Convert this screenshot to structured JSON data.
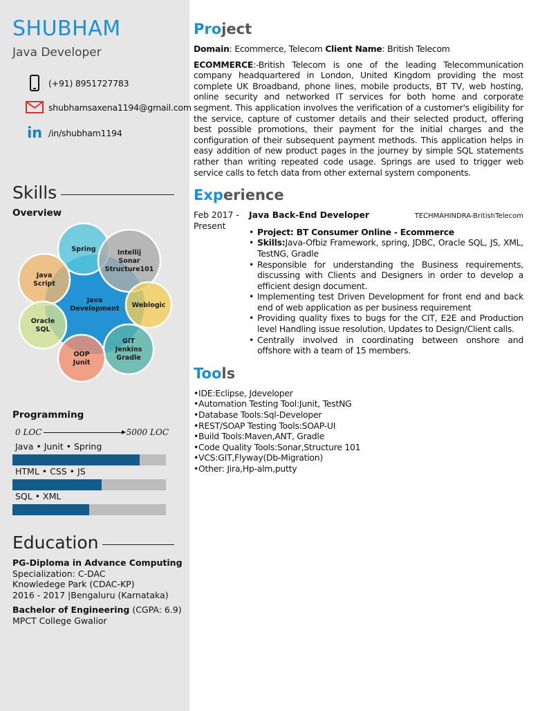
{
  "sidebar": {
    "name": "SHUBHAM",
    "role": "Java Developer",
    "contacts": [
      {
        "icon": "phone-icon",
        "text": "(+91) 8951727783"
      },
      {
        "icon": "mail-icon",
        "text": "shubhamsaxena1194@gmail.com"
      },
      {
        "icon": "linkedin-icon",
        "text": "/in/shubham1194"
      }
    ],
    "skills_title": "Skills",
    "overview_title": "Overview",
    "overview_diagram": {
      "center": "Java Development",
      "nodes": [
        {
          "label": "Spring",
          "color": "#4fc6dc"
        },
        {
          "label": "Intellij Sonar Structure101",
          "color": "#a9a9a9"
        },
        {
          "label": "Java Script",
          "color": "#f1b56b"
        },
        {
          "label": "Weblogic",
          "color": "#f4cd52"
        },
        {
          "label": "Oracle SQL",
          "color": "#cfe18f"
        },
        {
          "label": "GIT Jenkins Gradle",
          "color": "#4fb0a6"
        },
        {
          "label": "OOP Junit",
          "color": "#f58a6a"
        }
      ]
    },
    "programming_title": "Programming",
    "scale_start": "0 LOC",
    "scale_end": "5000 LOC",
    "programming": [
      {
        "label": "Java • Junit • Spring",
        "percent": 83
      },
      {
        "label": "HTML • CSS • JS",
        "percent": 58
      },
      {
        "label": "SQL • XML",
        "percent": 50
      }
    ],
    "education_title": "Education",
    "education": [
      {
        "title": "PG-Diploma in Advance Computing",
        "lines": [
          "Specialization: C-DAC",
          "Knowledege Park (CDAC-KP)",
          "2016 - 2017 |Bengaluru (Karnataka)"
        ]
      },
      {
        "title": "Bachelor of Engineering",
        "extra": "(CGPA: 6.9)",
        "lines": [
          "MPCT College Gwalior"
        ]
      }
    ]
  },
  "project": {
    "title_a": "Pro",
    "title_b": "ject",
    "domain_label": "Domain",
    "domain": ": Ecommerce, Telecom ",
    "client_label": "Client Name",
    ": British Telecom": "",
    "client": ": British Telecom",
    "desc_label": "ECOMMERCE",
    "desc": ":-British Telecom is one of the leading Telecommunication company headquartered in London, United Kingdom providing the most complete UK Broadband, phone lines, mobile products, BT TV, web hosting, online security and networked IT services for both home and corporate segment. This application involves the verification of a customer's eligibility for the service, capture of customer details and their selected product, offering best possible promotions, their payment for the initial charges and the configuration of their subsequent payment methods. This application helps in easy addition of new product pages in the journey by simple SQL statements rather than writing repeated code usage. Springs are used to trigger web service calls to fetch data from other external system components."
  },
  "experience": {
    "title_a": "Exp",
    "title_b": "erience",
    "date1": "Feb 2017 -",
    "date2": "Present",
    "position": "Java Back-End Developer",
    "company": "TECHMAHINDRA-BritishTelecom",
    "project_line": "Project: BT Consumer Online - Ecommerce",
    "skills_label": "Skills:",
    "skills": "Java-Ofbiz Framework, spring, JDBC, Oracle SQL, JS, XML, TestNG, Gradle",
    "bullets": [
      "Responsible for understanding the Business requirements, discussing with Clients and Designers in order to develop a efficient design document.",
      "Implementing test Driven Development for front end and back end of web application as per business requirement",
      "Providing quality fixes to bugs for the CIT, E2E and Production level Handling issue resolution, Updates to Design/Client calls.",
      "Centrally involved in coordinating between onshore and offshore with a team of 15 members."
    ]
  },
  "tools": {
    "title_a": "Too",
    "title_b": "ls",
    "items": [
      "•IDE:Eclipse, Jdeveloper",
      "•Automation Testing Tool:Junit, TestNG",
      "•Database Tools:Sql-Developer",
      "•REST/SOAP Testing Tools:SOAP-UI",
      "•Build Tools:Maven,ANT, Gradle",
      "•Code Quality Tools:Sonar,Structure 101",
      "•VCS:GIT,Flyway(Db-Migration)",
      "•Other: Jira,Hp-alm,putty"
    ]
  }
}
